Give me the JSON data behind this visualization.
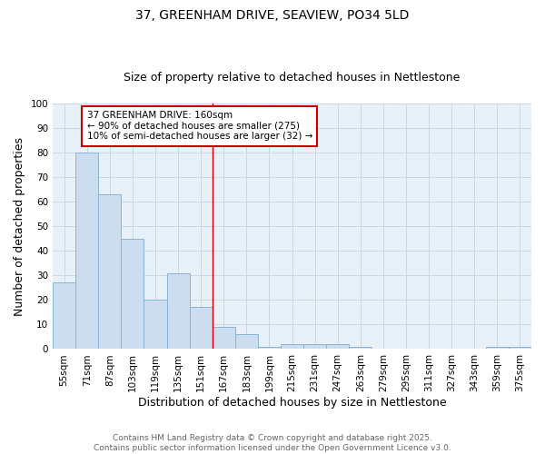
{
  "title1": "37, GREENHAM DRIVE, SEAVIEW, PO34 5LD",
  "title2": "Size of property relative to detached houses in Nettlestone",
  "xlabel": "Distribution of detached houses by size in Nettlestone",
  "ylabel": "Number of detached properties",
  "categories": [
    "55sqm",
    "71sqm",
    "87sqm",
    "103sqm",
    "119sqm",
    "135sqm",
    "151sqm",
    "167sqm",
    "183sqm",
    "199sqm",
    "215sqm",
    "231sqm",
    "247sqm",
    "263sqm",
    "279sqm",
    "295sqm",
    "311sqm",
    "327sqm",
    "343sqm",
    "359sqm",
    "375sqm"
  ],
  "values": [
    27,
    80,
    63,
    45,
    20,
    31,
    17,
    9,
    6,
    1,
    2,
    2,
    2,
    1,
    0,
    0,
    0,
    0,
    0,
    1,
    1
  ],
  "bar_color": "#ccddf0",
  "bar_edge_color": "#8ab4d4",
  "grid_color": "#c8d8e8",
  "background_color": "#e8f0f8",
  "vline_color": "#cc0000",
  "vline_x_idx": 7,
  "annotation_line1": "37 GREENHAM DRIVE: 160sqm",
  "annotation_line2": "← 90% of detached houses are smaller (275)",
  "annotation_line3": "10% of semi-detached houses are larger (32) →",
  "annotation_box_color": "#cc0000",
  "ylim": [
    0,
    100
  ],
  "yticks": [
    0,
    10,
    20,
    30,
    40,
    50,
    60,
    70,
    80,
    90,
    100
  ],
  "footnote": "Contains HM Land Registry data © Crown copyright and database right 2025.\nContains public sector information licensed under the Open Government Licence v3.0.",
  "title1_fontsize": 10,
  "title2_fontsize": 9,
  "axis_label_fontsize": 9,
  "tick_fontsize": 7.5,
  "annotation_fontsize": 7.5,
  "footnote_fontsize": 6.5
}
